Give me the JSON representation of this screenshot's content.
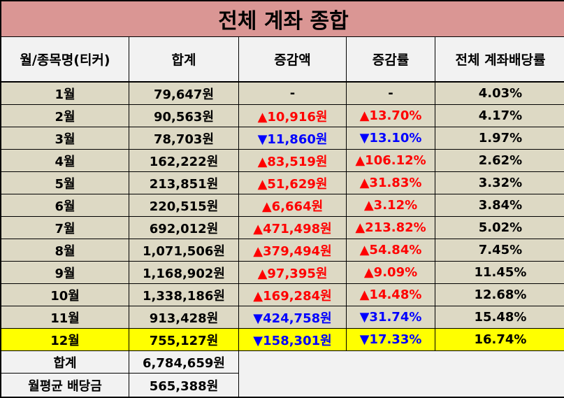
{
  "title": "전체 계좌 종합",
  "headers": [
    "월/종목명(티커)",
    "합계",
    "증감액",
    "증감률",
    "전체 계좌배당률"
  ],
  "rows": [
    {
      "month": "1월",
      "total": "79,647원",
      "change": "-",
      "rate": "-",
      "yield": "4.03%",
      "dir": "none"
    },
    {
      "month": "2월",
      "total": "90,563원",
      "change": "▲10,916원",
      "rate": "▲13.70%",
      "yield": "4.17%",
      "dir": "up"
    },
    {
      "month": "3월",
      "total": "78,703원",
      "change": "▼11,860원",
      "rate": "▼13.10%",
      "yield": "1.97%",
      "dir": "down"
    },
    {
      "month": "4월",
      "total": "162,222원",
      "change": "▲83,519원",
      "rate": "▲106.12%",
      "yield": "2.62%",
      "dir": "up"
    },
    {
      "month": "5월",
      "total": "213,851원",
      "change": "▲51,629원",
      "rate": "▲31.83%",
      "yield": "3.32%",
      "dir": "up"
    },
    {
      "month": "6월",
      "total": "220,515원",
      "change": "▲6,664원",
      "rate": "▲3.12%",
      "yield": "3.84%",
      "dir": "up"
    },
    {
      "month": "7월",
      "total": "692,012원",
      "change": "▲471,498원",
      "rate": "▲213.82%",
      "yield": "5.02%",
      "dir": "up"
    },
    {
      "month": "8월",
      "total": "1,071,506원",
      "change": "▲379,494원",
      "rate": "▲54.84%",
      "yield": "7.45%",
      "dir": "up"
    },
    {
      "month": "9월",
      "total": "1,168,902원",
      "change": "▲97,395원",
      "rate": "▲9.09%",
      "yield": "11.45%",
      "dir": "up"
    },
    {
      "month": "10월",
      "total": "1,338,186원",
      "change": "▲169,284원",
      "rate": "▲14.48%",
      "yield": "12.68%",
      "dir": "up"
    },
    {
      "month": "11월",
      "total": "913,428원",
      "change": "▼424,758원",
      "rate": "▼31.74%",
      "yield": "15.48%",
      "dir": "down"
    },
    {
      "month": "12월",
      "total": "755,127원",
      "change": "▼158,301원",
      "rate": "▼17.33%",
      "yield": "16.74%",
      "dir": "down",
      "highlight": true
    }
  ],
  "footer": {
    "sum_label": "합계",
    "sum_value": "6,784,659원",
    "avg_label": "월평균 배당금",
    "avg_value": "565,388원"
  },
  "colors": {
    "title_bg": "#da9694",
    "header_bg": "#f2f2f2",
    "row_bg": "#ddd9c4",
    "highlight_bg": "#ffff00",
    "up": "#ff0000",
    "down": "#0000ff"
  }
}
